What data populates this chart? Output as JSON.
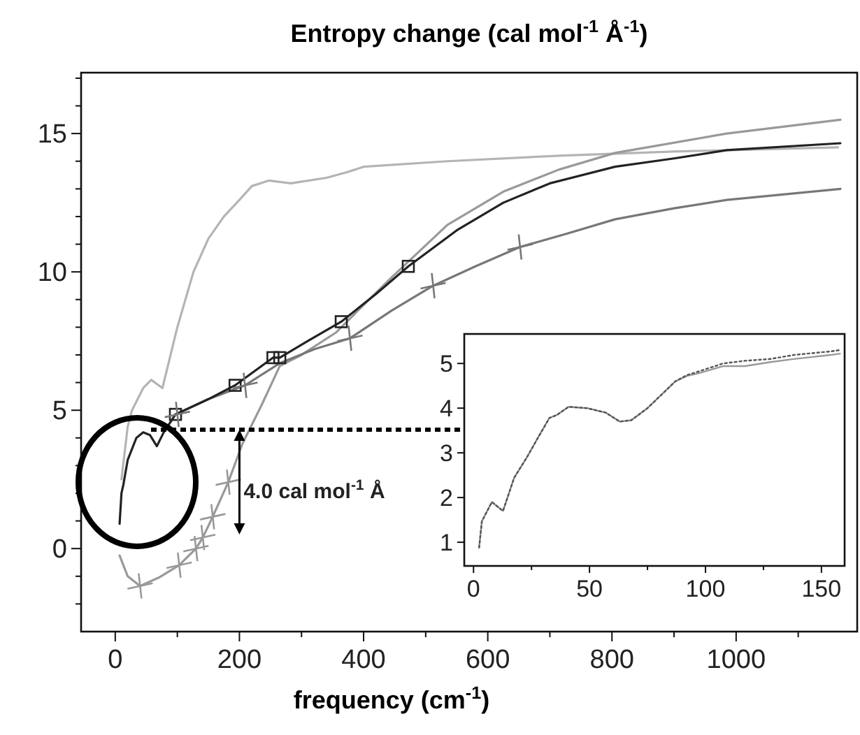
{
  "chart_data": [
    {
      "type": "line",
      "title": "Entropy change (cal mol$^{-1}$ Å$^{-1}$)",
      "xlabel": "frequency (cm$^{-1}$)",
      "xlim": [
        -55,
        1195
      ],
      "ylim": [
        -3,
        17.2
      ],
      "xticks": [
        0,
        {
          "value": 100,
          "label": null
        },
        200,
        {
          "value": 300,
          "label": null
        },
        400,
        {
          "value": 500,
          "label": null
        },
        600,
        {
          "value": 700,
          "label": null
        },
        800,
        {
          "value": 900,
          "label": null
        },
        1000,
        {
          "value": 1100,
          "label": null
        }
      ],
      "yticks": [
        {
          "value": -2,
          "label": null
        },
        {
          "value": -1,
          "label": null
        },
        0,
        {
          "value": 1,
          "label": null
        },
        {
          "value": 2,
          "label": null
        },
        {
          "value": 3,
          "label": null
        },
        {
          "value": 4,
          "label": null
        },
        5,
        {
          "value": 6,
          "label": null
        },
        {
          "value": 7,
          "label": null
        },
        {
          "value": 8,
          "label": null
        },
        {
          "value": 9,
          "label": null
        },
        10,
        {
          "value": 11,
          "label": null
        },
        {
          "value": 12,
          "label": null
        },
        {
          "value": 13,
          "label": null
        },
        {
          "value": 14,
          "label": null
        },
        15,
        {
          "value": 16,
          "label": null
        },
        {
          "value": 17,
          "label": null
        }
      ],
      "grid": false,
      "annotations": [
        {
          "text": "4.0 cal mol$^{-1}$ Å",
          "x": 200,
          "y": 4.3
        }
      ],
      "ref_lines": [
        {
          "axis": "y",
          "value": 4.3,
          "color": "#000000",
          "line_style": "dotted"
        }
      ],
      "series": [
        {
          "color": "#b4b4b4",
          "x": [
            10,
            20,
            27,
            45,
            58,
            76,
            100,
            126,
            150,
            175,
            200,
            220,
            247,
            283,
            340,
            373,
            400,
            535,
            715,
            900,
            1164
          ],
          "values": [
            2.5,
            4.4,
            5.0,
            5.8,
            6.1,
            5.8,
            8.0,
            10.0,
            11.2,
            12.0,
            12.6,
            13.1,
            13.3,
            13.2,
            13.4,
            13.6,
            13.8,
            14.0,
            14.2,
            14.35,
            14.5
          ]
        },
        {
          "color": "#999999",
          "x": [
            7,
            20,
            40,
            70,
            103,
            130,
            141,
            157,
            182,
            205,
            236,
            265,
            300,
            355,
            445,
            535,
            625,
            715,
            805,
            985,
            1168
          ],
          "values": [
            -0.25,
            -1.0,
            -1.35,
            -1.05,
            -0.6,
            0.0,
            0.4,
            1.15,
            2.4,
            3.8,
            5.2,
            6.6,
            7.0,
            7.8,
            9.8,
            11.7,
            12.9,
            13.7,
            14.3,
            15.0,
            15.5
          ]
        },
        {
          "color": "#777777",
          "x": [
            97,
            150,
            209,
            265,
            320,
            378,
            445,
            512,
            580,
            652,
            730,
            805,
            900,
            985,
            1168
          ],
          "values": [
            4.85,
            5.4,
            5.9,
            6.7,
            7.2,
            7.6,
            8.6,
            9.5,
            10.2,
            10.9,
            11.4,
            11.9,
            12.3,
            12.6,
            13.0
          ]
        },
        {
          "color": "#222222",
          "x": [
            7,
            10,
            13,
            20,
            34,
            45,
            56,
            67,
            78,
            97,
            150,
            193,
            254,
            265,
            310,
            364,
            420,
            472,
            550,
            625,
            700,
            805,
            900,
            985,
            1168
          ],
          "values": [
            0.9,
            2.0,
            2.3,
            3.2,
            4.0,
            4.2,
            4.1,
            3.7,
            4.2,
            4.85,
            5.4,
            5.9,
            6.9,
            6.9,
            7.5,
            8.2,
            9.2,
            10.2,
            11.5,
            12.5,
            13.2,
            13.8,
            14.1,
            14.4,
            14.65
          ]
        },
        {
          "type": "scatter",
          "marker": "square",
          "color": "#222222",
          "x": [
            97,
            193,
            254,
            265,
            364,
            472
          ],
          "values": [
            4.85,
            5.9,
            6.9,
            6.9,
            8.2,
            10.2
          ]
        },
        {
          "type": "scatter",
          "marker": "cross",
          "color": "#777777",
          "x": [
            100,
            209,
            378,
            512,
            652
          ],
          "values": [
            4.85,
            5.9,
            7.6,
            9.5,
            10.9
          ]
        },
        {
          "type": "scatter",
          "marker": "cross",
          "color": "#999999",
          "x": [
            40,
            103,
            130,
            141,
            157,
            182
          ],
          "values": [
            -1.35,
            -0.6,
            0.0,
            0.4,
            1.15,
            2.4
          ]
        }
      ]
    },
    {
      "type": "line",
      "xlim": [
        -4,
        160
      ],
      "ylim": [
        0.47,
        5.66
      ],
      "xticks": [
        0,
        {
          "value": 25,
          "label": null
        },
        50,
        {
          "value": 75,
          "label": null
        },
        100,
        {
          "value": 125,
          "label": null
        },
        150
      ],
      "yticks": [
        1,
        2,
        3,
        4,
        5
      ],
      "grid": false,
      "series": [
        {
          "color": "#999999",
          "line_style": "solid",
          "x": [
            2.4,
            3.6,
            7.9,
            12.7,
            17.5,
            23,
            27.8,
            32.7,
            36,
            41,
            49,
            57,
            63,
            68,
            75,
            81,
            87,
            92,
            97,
            107.6,
            117,
            128,
            138,
            154,
            158
          ],
          "values": [
            0.88,
            1.47,
            1.9,
            1.7,
            2.44,
            2.9,
            3.34,
            3.78,
            3.85,
            4.03,
            4.0,
            3.9,
            3.7,
            3.73,
            4.0,
            4.3,
            4.6,
            4.72,
            4.78,
            4.94,
            4.94,
            5.03,
            5.1,
            5.19,
            5.22
          ]
        },
        {
          "color": "#555555",
          "line_style": "dotted",
          "x": [
            2.4,
            3.6,
            7.9,
            12.7,
            17.5,
            23,
            27.8,
            32.7,
            36,
            41,
            49,
            57,
            63,
            68,
            75,
            81,
            87,
            92,
            97,
            107.6,
            117,
            128,
            138,
            154,
            158
          ],
          "values": [
            0.88,
            1.47,
            1.9,
            1.7,
            2.44,
            2.9,
            3.34,
            3.78,
            3.85,
            4.03,
            4.0,
            3.9,
            3.7,
            3.73,
            4.0,
            4.3,
            4.6,
            4.74,
            4.82,
            5.0,
            5.06,
            5.1,
            5.19,
            5.27,
            5.3
          ]
        }
      ]
    }
  ]
}
